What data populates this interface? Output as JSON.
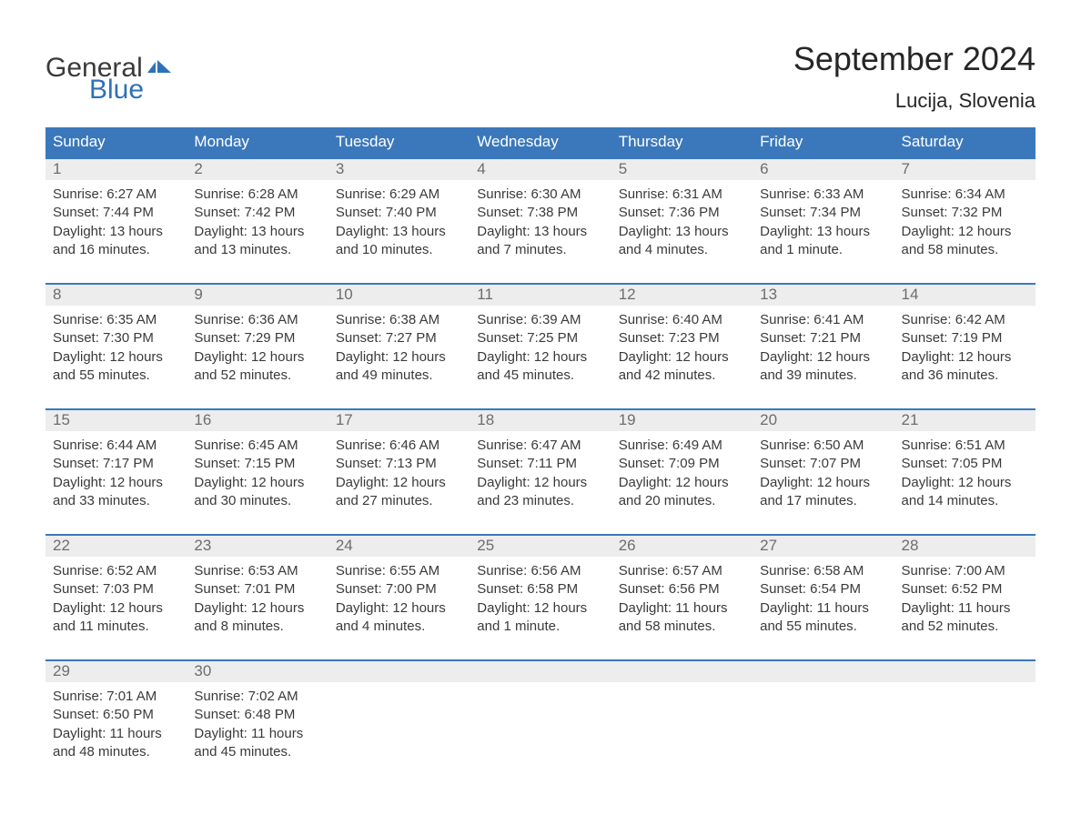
{
  "brand": {
    "word1": "General",
    "word2": "Blue",
    "word1_color": "#3a3a3a",
    "word2_color": "#2e71b8",
    "icon_color": "#2e71b8"
  },
  "title": "September 2024",
  "location": "Lucija, Slovenia",
  "colors": {
    "header_bg": "#3b78bb",
    "header_text": "#ffffff",
    "date_row_bg": "#ededed",
    "date_text": "#6d6d6d",
    "body_text": "#3a3a3a",
    "week_border": "#3b78bb",
    "page_bg": "#ffffff"
  },
  "typography": {
    "title_fontsize": 36,
    "location_fontsize": 22,
    "header_fontsize": 17,
    "date_fontsize": 17,
    "info_fontsize": 15,
    "logo_fontsize": 30
  },
  "day_names": [
    "Sunday",
    "Monday",
    "Tuesday",
    "Wednesday",
    "Thursday",
    "Friday",
    "Saturday"
  ],
  "days": [
    {
      "date": "1",
      "sunrise": "6:27 AM",
      "sunset": "7:44 PM",
      "daylight": "13 hours and 16 minutes."
    },
    {
      "date": "2",
      "sunrise": "6:28 AM",
      "sunset": "7:42 PM",
      "daylight": "13 hours and 13 minutes."
    },
    {
      "date": "3",
      "sunrise": "6:29 AM",
      "sunset": "7:40 PM",
      "daylight": "13 hours and 10 minutes."
    },
    {
      "date": "4",
      "sunrise": "6:30 AM",
      "sunset": "7:38 PM",
      "daylight": "13 hours and 7 minutes."
    },
    {
      "date": "5",
      "sunrise": "6:31 AM",
      "sunset": "7:36 PM",
      "daylight": "13 hours and 4 minutes."
    },
    {
      "date": "6",
      "sunrise": "6:33 AM",
      "sunset": "7:34 PM",
      "daylight": "13 hours and 1 minute."
    },
    {
      "date": "7",
      "sunrise": "6:34 AM",
      "sunset": "7:32 PM",
      "daylight": "12 hours and 58 minutes."
    },
    {
      "date": "8",
      "sunrise": "6:35 AM",
      "sunset": "7:30 PM",
      "daylight": "12 hours and 55 minutes."
    },
    {
      "date": "9",
      "sunrise": "6:36 AM",
      "sunset": "7:29 PM",
      "daylight": "12 hours and 52 minutes."
    },
    {
      "date": "10",
      "sunrise": "6:38 AM",
      "sunset": "7:27 PM",
      "daylight": "12 hours and 49 minutes."
    },
    {
      "date": "11",
      "sunrise": "6:39 AM",
      "sunset": "7:25 PM",
      "daylight": "12 hours and 45 minutes."
    },
    {
      "date": "12",
      "sunrise": "6:40 AM",
      "sunset": "7:23 PM",
      "daylight": "12 hours and 42 minutes."
    },
    {
      "date": "13",
      "sunrise": "6:41 AM",
      "sunset": "7:21 PM",
      "daylight": "12 hours and 39 minutes."
    },
    {
      "date": "14",
      "sunrise": "6:42 AM",
      "sunset": "7:19 PM",
      "daylight": "12 hours and 36 minutes."
    },
    {
      "date": "15",
      "sunrise": "6:44 AM",
      "sunset": "7:17 PM",
      "daylight": "12 hours and 33 minutes."
    },
    {
      "date": "16",
      "sunrise": "6:45 AM",
      "sunset": "7:15 PM",
      "daylight": "12 hours and 30 minutes."
    },
    {
      "date": "17",
      "sunrise": "6:46 AM",
      "sunset": "7:13 PM",
      "daylight": "12 hours and 27 minutes."
    },
    {
      "date": "18",
      "sunrise": "6:47 AM",
      "sunset": "7:11 PM",
      "daylight": "12 hours and 23 minutes."
    },
    {
      "date": "19",
      "sunrise": "6:49 AM",
      "sunset": "7:09 PM",
      "daylight": "12 hours and 20 minutes."
    },
    {
      "date": "20",
      "sunrise": "6:50 AM",
      "sunset": "7:07 PM",
      "daylight": "12 hours and 17 minutes."
    },
    {
      "date": "21",
      "sunrise": "6:51 AM",
      "sunset": "7:05 PM",
      "daylight": "12 hours and 14 minutes."
    },
    {
      "date": "22",
      "sunrise": "6:52 AM",
      "sunset": "7:03 PM",
      "daylight": "12 hours and 11 minutes."
    },
    {
      "date": "23",
      "sunrise": "6:53 AM",
      "sunset": "7:01 PM",
      "daylight": "12 hours and 8 minutes."
    },
    {
      "date": "24",
      "sunrise": "6:55 AM",
      "sunset": "7:00 PM",
      "daylight": "12 hours and 4 minutes."
    },
    {
      "date": "25",
      "sunrise": "6:56 AM",
      "sunset": "6:58 PM",
      "daylight": "12 hours and 1 minute."
    },
    {
      "date": "26",
      "sunrise": "6:57 AM",
      "sunset": "6:56 PM",
      "daylight": "11 hours and 58 minutes."
    },
    {
      "date": "27",
      "sunrise": "6:58 AM",
      "sunset": "6:54 PM",
      "daylight": "11 hours and 55 minutes."
    },
    {
      "date": "28",
      "sunrise": "7:00 AM",
      "sunset": "6:52 PM",
      "daylight": "11 hours and 52 minutes."
    },
    {
      "date": "29",
      "sunrise": "7:01 AM",
      "sunset": "6:50 PM",
      "daylight": "11 hours and 48 minutes."
    },
    {
      "date": "30",
      "sunrise": "7:02 AM",
      "sunset": "6:48 PM",
      "daylight": "11 hours and 45 minutes."
    }
  ],
  "labels": {
    "sunrise": "Sunrise:",
    "sunset": "Sunset:",
    "daylight": "Daylight:"
  },
  "layout": {
    "columns": 7,
    "weeks": 5
  }
}
